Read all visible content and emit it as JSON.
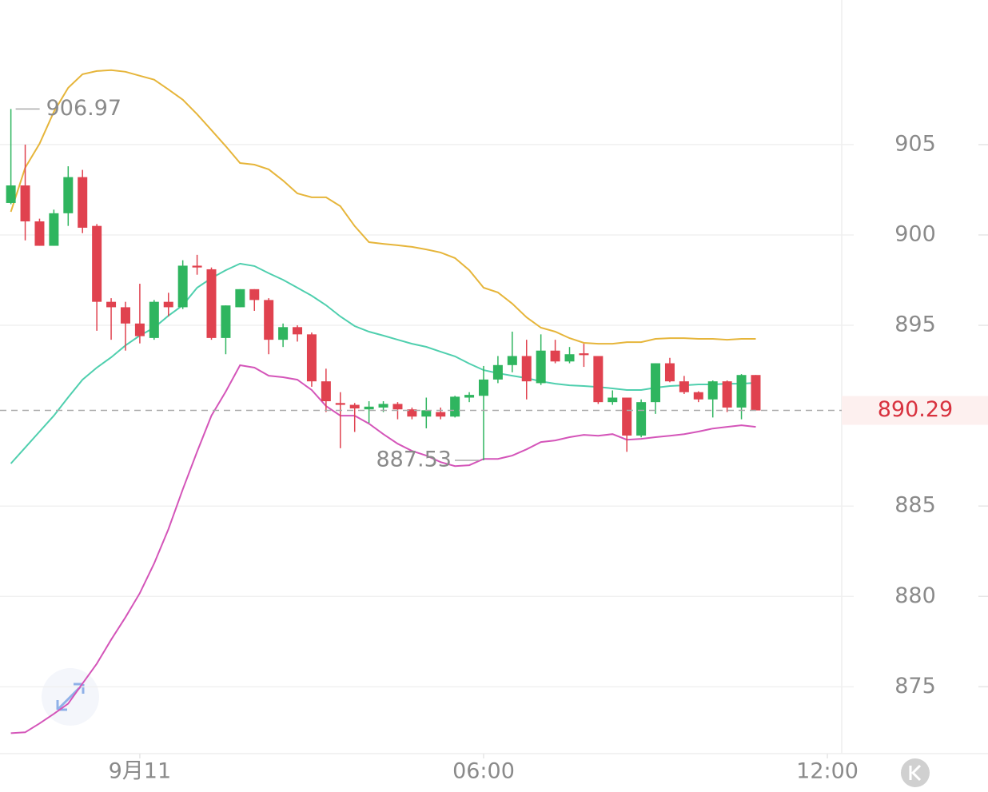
{
  "chart_data": {
    "type": "candlestick",
    "x": [
      -2.25,
      -2,
      -1.75,
      -1.5,
      -1.25,
      -1,
      -0.75,
      -0.5,
      -0.25,
      0,
      0.25,
      0.5,
      0.75,
      1,
      1.25,
      1.5,
      1.75,
      2,
      2.25,
      2.5,
      2.75,
      3,
      3.25,
      3.5,
      3.75,
      4,
      4.25,
      4.5,
      4.75,
      5,
      5.25,
      5.5,
      5.75,
      6,
      6.25,
      6.5,
      6.75,
      7,
      7.25,
      7.5,
      7.75,
      8,
      8.25,
      8.5,
      8.75,
      9,
      9.25,
      9.5,
      9.75,
      10,
      10.25,
      10.5,
      10.75
    ],
    "open": [
      901.77,
      902.74,
      900.75,
      899.4,
      901.2,
      903.2,
      900.5,
      896.3,
      896.0,
      895.1,
      894.3,
      896.3,
      896.0,
      898.3,
      898.1,
      894.3,
      896.0,
      897.0,
      896.4,
      894.2,
      894.9,
      894.5,
      891.9,
      890.7,
      890.6,
      890.35,
      890.45,
      890.65,
      890.35,
      889.95,
      890.2,
      889.95,
      891.0,
      891.1,
      892.0,
      892.8,
      893.3,
      891.8,
      893.6,
      893.0,
      893.45,
      893.3,
      890.75,
      891.0,
      888.9,
      890.75,
      892.9,
      891.9,
      891.3,
      890.9,
      891.9,
      890.45,
      892.25
    ],
    "high": [
      906.97,
      905.0,
      900.9,
      901.4,
      903.8,
      903.6,
      900.6,
      896.5,
      896.3,
      897.3,
      896.4,
      896.8,
      898.6,
      898.9,
      898.2,
      896.1,
      897.0,
      897.0,
      896.5,
      895.1,
      895.0,
      894.6,
      892.6,
      891.3,
      890.7,
      890.8,
      890.8,
      890.75,
      890.45,
      891.0,
      890.45,
      891.1,
      891.3,
      892.75,
      893.3,
      894.65,
      894.2,
      894.5,
      894.2,
      893.8,
      893.98,
      893.3,
      891.4,
      891.0,
      890.9,
      892.9,
      893.2,
      892.2,
      891.35,
      891.95,
      891.95,
      892.3,
      892.25
    ],
    "low": [
      901.7,
      899.7,
      899.4,
      899.4,
      900.5,
      900.1,
      894.7,
      894.2,
      893.6,
      894.0,
      894.2,
      895.5,
      895.9,
      897.8,
      894.2,
      893.4,
      896.0,
      895.8,
      893.4,
      893.8,
      894.1,
      891.6,
      890.2,
      888.2,
      889.1,
      889.6,
      890.2,
      889.8,
      889.8,
      889.3,
      889.8,
      889.9,
      890.75,
      887.53,
      891.8,
      892.4,
      890.9,
      891.7,
      892.9,
      892.9,
      892.7,
      890.65,
      890.6,
      888.0,
      888.8,
      890.1,
      891.85,
      891.2,
      890.75,
      889.9,
      890.2,
      889.8,
      890.29
    ],
    "close": [
      902.74,
      900.75,
      899.4,
      901.2,
      903.2,
      900.4,
      896.3,
      896.0,
      895.1,
      894.4,
      896.3,
      896.0,
      898.3,
      898.2,
      894.3,
      896.1,
      897.0,
      896.4,
      894.2,
      894.9,
      894.5,
      891.9,
      890.8,
      890.6,
      890.4,
      890.5,
      890.65,
      890.35,
      889.95,
      890.3,
      889.95,
      891.05,
      891.15,
      892.0,
      892.8,
      893.3,
      891.9,
      893.6,
      893.0,
      893.4,
      893.35,
      890.75,
      891.0,
      888.9,
      890.75,
      892.9,
      891.9,
      891.3,
      890.9,
      891.9,
      890.45,
      892.25,
      890.29
    ],
    "up_color": "#2fb55f",
    "down_color": "#e0424f",
    "lines": [
      {
        "color": "#e6b53a",
        "values": [
          901.28,
          903.72,
          905.05,
          906.82,
          908.14,
          908.89,
          909.07,
          909.12,
          909.03,
          908.81,
          908.59,
          908.05,
          907.48,
          906.68,
          905.8,
          904.91,
          903.98,
          903.89,
          903.63,
          903.01,
          902.3,
          902.08,
          902.08,
          901.59,
          900.49,
          899.6,
          899.51,
          899.43,
          899.34,
          899.2,
          899.03,
          898.72,
          898.05,
          897.08,
          896.82,
          896.2,
          895.44,
          894.87,
          894.65,
          894.29,
          894.03,
          893.98,
          893.98,
          894.07,
          894.07,
          894.25,
          894.29,
          894.29,
          894.25,
          894.25,
          894.2,
          894.25,
          894.25
        ]
      },
      {
        "color": "#4fcfae",
        "values": [
          887.35,
          888.23,
          889.12,
          890.0,
          891.02,
          891.99,
          892.66,
          893.23,
          893.89,
          894.43,
          894.87,
          895.53,
          896.11,
          897.08,
          897.61,
          898.05,
          898.41,
          898.28,
          897.88,
          897.52,
          897.08,
          896.64,
          896.11,
          895.49,
          894.96,
          894.65,
          894.43,
          894.2,
          893.98,
          893.81,
          893.54,
          893.28,
          892.88,
          892.52,
          892.35,
          892.21,
          892.08,
          891.9,
          891.77,
          891.68,
          891.64,
          891.59,
          891.51,
          891.42,
          891.42,
          891.55,
          891.64,
          891.68,
          891.73,
          891.73,
          891.77,
          891.77,
          891.82
        ]
      },
      {
        "color": "#d455b9",
        "values": [
          872.43,
          872.48,
          872.97,
          873.5,
          874.07,
          875.18,
          876.28,
          877.61,
          878.85,
          880.18,
          881.82,
          883.72,
          885.93,
          888.01,
          890.0,
          891.33,
          892.79,
          892.66,
          892.21,
          892.13,
          891.99,
          891.42,
          890.53,
          890.0,
          890.0,
          889.56,
          888.98,
          888.45,
          888.05,
          887.79,
          887.43,
          887.21,
          887.26,
          887.61,
          887.61,
          887.79,
          888.14,
          888.54,
          888.63,
          888.81,
          888.94,
          888.89,
          888.98,
          888.67,
          888.72,
          888.81,
          888.89,
          888.98,
          889.12,
          889.29,
          889.38,
          889.47,
          889.38
        ]
      }
    ],
    "annotations": {
      "high": 906.97,
      "low": 887.53,
      "last": 890.29
    },
    "xlim": [
      -2.44,
      12.25
    ],
    "xticks": [
      {
        "value": 0,
        "label": "9月11"
      },
      {
        "value": 6,
        "label": "06:00"
      },
      {
        "value": 12,
        "label": "12:00"
      }
    ],
    "ylim": [
      871.3,
      913.0
    ],
    "yticks": [
      875,
      880,
      885,
      895,
      900,
      905
    ],
    "grid": true
  }
}
